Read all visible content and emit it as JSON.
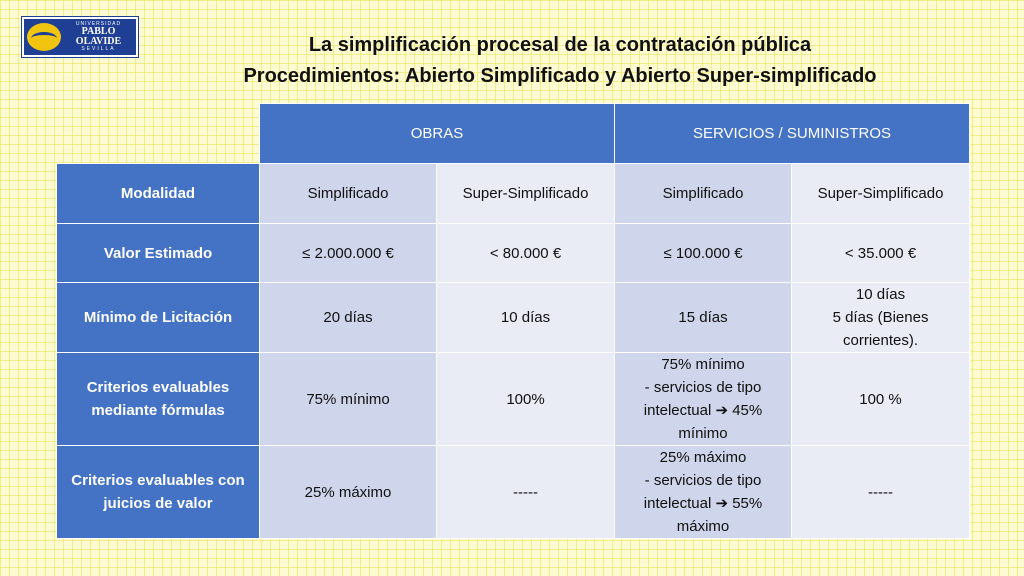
{
  "logo": {
    "top": "UNIVERSIDAD",
    "main": "PABLO OLAVIDE",
    "bottom": "SEVILLA"
  },
  "title": {
    "line1": "La simplificación procesal de la contratación pública",
    "line2": "Procedimientos: Abierto Simplificado y Abierto Super-simplificado"
  },
  "table": {
    "group_headers": [
      "OBRAS",
      "SERVICIOS / SUMINISTROS"
    ],
    "rows": [
      {
        "label": "Modalidad",
        "cells": [
          "Simplificado",
          "Super-Simplificado",
          "Simplificado",
          "Super-Simplificado"
        ]
      },
      {
        "label": "Valor Estimado",
        "cells": [
          "≤ 2.000.000 €",
          "< 80.000 €",
          "≤ 100.000 €",
          "< 35.000 €"
        ]
      },
      {
        "label": "Mínimo de Licitación",
        "cells": [
          "20 días",
          "10 días",
          "15 días",
          [
            "10 días",
            "5 días (Bienes",
            "corrientes)."
          ]
        ]
      },
      {
        "label": [
          "Criterios evaluables",
          "mediante fórmulas"
        ],
        "cells": [
          "75% mínimo",
          "100%",
          [
            "75% mínimo",
            "- servicios de tipo",
            "intelectual ➔ 45%",
            "mínimo"
          ],
          "100 %"
        ]
      },
      {
        "label": [
          "Criterios evaluables con",
          "juicios de valor"
        ],
        "cells": [
          "25% máximo",
          "-----",
          [
            "25% máximo",
            "- servicios de tipo",
            "intelectual ➔ 55%",
            "máximo"
          ],
          "-----"
        ]
      }
    ]
  }
}
